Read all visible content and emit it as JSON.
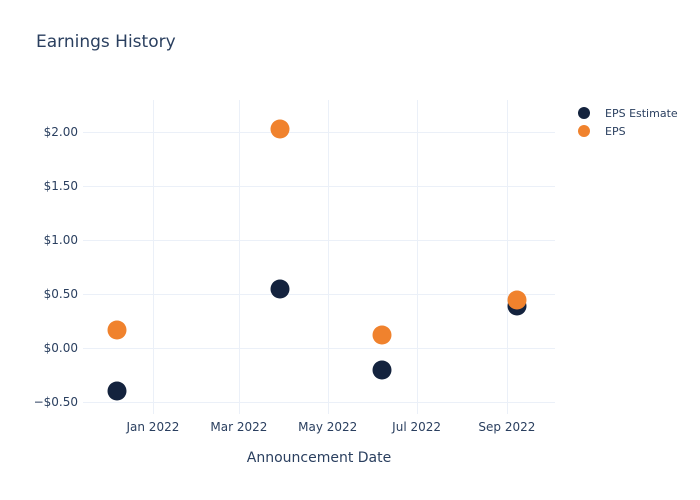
{
  "title": "Earnings History",
  "x_axis_title": "Announcement Date",
  "colors": {
    "estimate": "#14233e",
    "eps": "#f0822d",
    "text": "#2a3f5f",
    "grid": "#ebf0f8",
    "background": "#ffffff"
  },
  "legend": {
    "position": "right",
    "items": [
      {
        "label": "EPS Estimate",
        "series": "estimate"
      },
      {
        "label": "EPS",
        "series": "eps"
      }
    ]
  },
  "chart_data": {
    "type": "scatter",
    "title": "Earnings History",
    "xlabel": "Announcement Date",
    "ylabel": "",
    "marker_size_px": 19,
    "x": [
      "2021-12-07",
      "2022-03-29",
      "2022-06-07",
      "2022-09-08"
    ],
    "series": [
      {
        "name": "EPS Estimate",
        "key": "estimate",
        "color": "#14233e",
        "values": [
          -0.4,
          0.55,
          -0.2,
          0.39
        ]
      },
      {
        "name": "EPS",
        "key": "eps",
        "color": "#f0822d",
        "values": [
          0.17,
          2.03,
          0.12,
          0.45
        ]
      }
    ],
    "x_axis": {
      "min": "2021-11-14",
      "max": "2022-10-04",
      "ticks": [
        {
          "date": "2022-01-01",
          "label": "Jan 2022"
        },
        {
          "date": "2022-03-01",
          "label": "Mar 2022"
        },
        {
          "date": "2022-05-01",
          "label": "May 2022"
        },
        {
          "date": "2022-07-01",
          "label": "Jul 2022"
        },
        {
          "date": "2022-09-01",
          "label": "Sep 2022"
        }
      ]
    },
    "y_axis": {
      "min": -0.61,
      "max": 2.3,
      "ticks": [
        {
          "value": 2.0,
          "label": "$2.00"
        },
        {
          "value": 1.5,
          "label": "$1.50"
        },
        {
          "value": 1.0,
          "label": "$1.00"
        },
        {
          "value": 0.5,
          "label": "$0.50"
        },
        {
          "value": 0.0,
          "label": "$0.00"
        },
        {
          "value": -0.5,
          "label": "−$0.50"
        }
      ]
    }
  }
}
